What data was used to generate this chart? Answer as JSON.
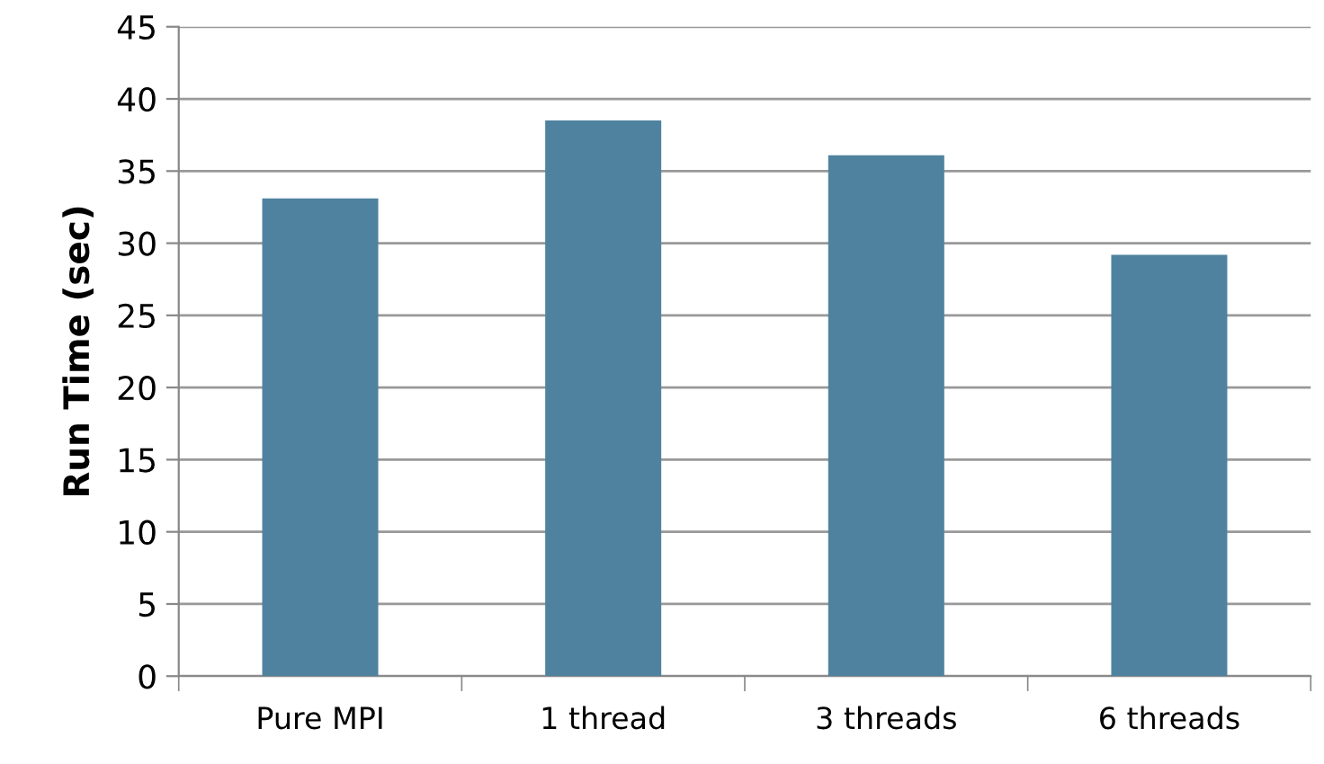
{
  "chart_data": {
    "type": "bar",
    "ylabel": "Run Time (sec)",
    "categories": [
      "Pure MPI",
      "1 thread",
      "3 threads",
      "6 threads"
    ],
    "values": [
      33.1,
      38.5,
      36.1,
      29.2
    ],
    "color": "#4f829f",
    "ylim": [
      0,
      45
    ],
    "yticks": [
      0,
      5,
      10,
      15,
      20,
      25,
      30,
      35,
      40,
      45
    ],
    "grid": "y"
  }
}
